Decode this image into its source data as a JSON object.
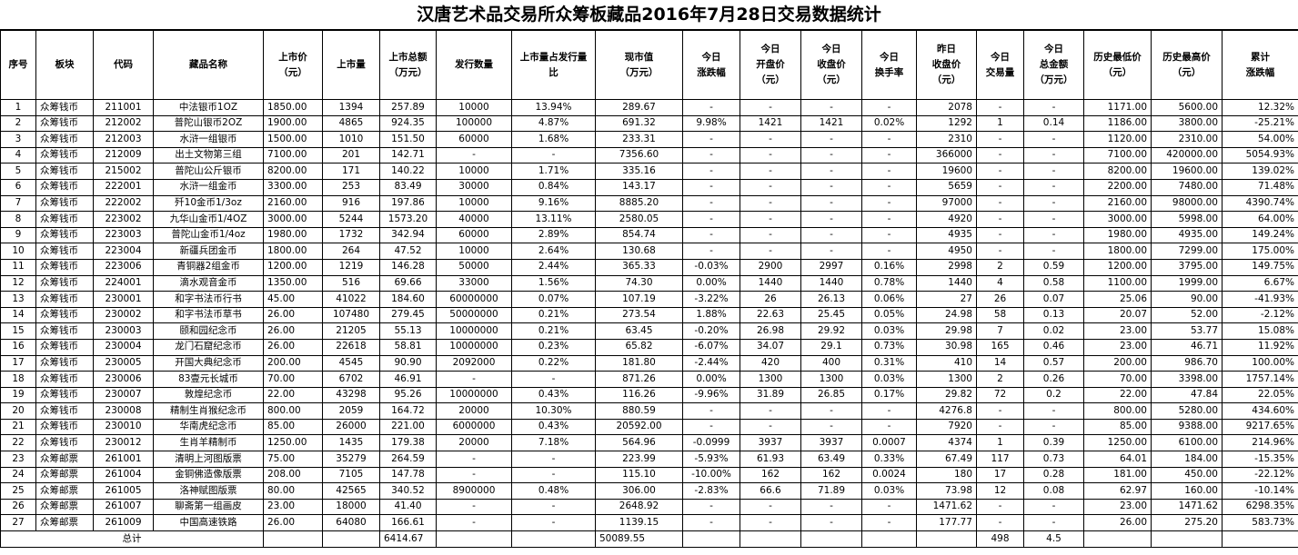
{
  "title": "汉唐艺术品交易所众筹板藏品2016年7月28日交易数据统计",
  "headers": [
    "序号",
    "板块",
    "代码",
    "藏品名称",
    "上市价\n（元）",
    "上市量",
    "上市总额\n（万元）",
    "发行数量",
    "上市量占发行量\n比",
    "现市值\n（万元）",
    "今日\n涨跌幅",
    "今日\n开盘价\n（元）",
    "今日\n收盘价\n（元）",
    "今日\n换手率",
    "昨日\n收盘价\n（元）",
    "今日\n交易量",
    "今日\n总金额\n（万元）",
    "历史最低价\n（元）",
    "历史最高价\n（元）",
    "累计\n涨跌幅"
  ],
  "rows": [
    [
      "1",
      "众筹钱币",
      "211001",
      "中法银币1OZ",
      "1850.00",
      "1394",
      "257.89",
      "10000",
      "13.94%",
      "289.67",
      "-",
      "-",
      "-",
      "-",
      "2078",
      "-",
      "-",
      "1171.00",
      "5600.00",
      "12.32%"
    ],
    [
      "2",
      "众筹钱币",
      "212002",
      "普陀山银币2OZ",
      "1900.00",
      "4865",
      "924.35",
      "100000",
      "4.87%",
      "691.32",
      "9.98%",
      "1421",
      "1421",
      "0.02%",
      "1292",
      "1",
      "0.14",
      "1186.00",
      "3800.00",
      "-25.21%"
    ],
    [
      "3",
      "众筹钱币",
      "212003",
      "水浒一组银币",
      "1500.00",
      "1010",
      "151.50",
      "60000",
      "1.68%",
      "233.31",
      "-",
      "-",
      "-",
      "-",
      "2310",
      "-",
      "-",
      "1120.00",
      "2310.00",
      "54.00%"
    ],
    [
      "4",
      "众筹钱币",
      "212009",
      "出土文物第三组",
      "7100.00",
      "201",
      "142.71",
      "-",
      "-",
      "7356.60",
      "-",
      "-",
      "-",
      "-",
      "366000",
      "-",
      "-",
      "7100.00",
      "420000.00",
      "5054.93%"
    ],
    [
      "5",
      "众筹钱币",
      "215002",
      "普陀山公斤银币",
      "8200.00",
      "171",
      "140.22",
      "10000",
      "1.71%",
      "335.16",
      "-",
      "-",
      "-",
      "-",
      "19600",
      "-",
      "-",
      "8200.00",
      "19600.00",
      "139.02%"
    ],
    [
      "6",
      "众筹钱币",
      "222001",
      "水浒一组金币",
      "3300.00",
      "253",
      "83.49",
      "30000",
      "0.84%",
      "143.17",
      "-",
      "-",
      "-",
      "-",
      "5659",
      "-",
      "-",
      "2200.00",
      "7480.00",
      "71.48%"
    ],
    [
      "7",
      "众筹钱币",
      "222002",
      "歼10金币1/3oz",
      "2160.00",
      "916",
      "197.86",
      "10000",
      "9.16%",
      "8885.20",
      "-",
      "-",
      "-",
      "-",
      "97000",
      "-",
      "-",
      "2160.00",
      "98000.00",
      "4390.74%"
    ],
    [
      "8",
      "众筹钱币",
      "223002",
      "九华山金币1/4OZ",
      "3000.00",
      "5244",
      "1573.20",
      "40000",
      "13.11%",
      "2580.05",
      "-",
      "-",
      "-",
      "-",
      "4920",
      "-",
      "-",
      "3000.00",
      "5998.00",
      "64.00%"
    ],
    [
      "9",
      "众筹钱币",
      "223003",
      "普陀山金币1/4oz",
      "1980.00",
      "1732",
      "342.94",
      "60000",
      "2.89%",
      "854.74",
      "-",
      "-",
      "-",
      "-",
      "4935",
      "-",
      "-",
      "1980.00",
      "4935.00",
      "149.24%"
    ],
    [
      "10",
      "众筹钱币",
      "223004",
      "新疆兵团金币",
      "1800.00",
      "264",
      "47.52",
      "10000",
      "2.64%",
      "130.68",
      "-",
      "-",
      "-",
      "-",
      "4950",
      "-",
      "-",
      "1800.00",
      "7299.00",
      "175.00%"
    ],
    [
      "11",
      "众筹钱币",
      "223006",
      "青铜器2组金币",
      "1200.00",
      "1219",
      "146.28",
      "50000",
      "2.44%",
      "365.33",
      "-0.03%",
      "2900",
      "2997",
      "0.16%",
      "2998",
      "2",
      "0.59",
      "1200.00",
      "3795.00",
      "149.75%"
    ],
    [
      "12",
      "众筹钱币",
      "224001",
      "滴水观音金币",
      "1350.00",
      "516",
      "69.66",
      "33000",
      "1.56%",
      "74.30",
      "0.00%",
      "1440",
      "1440",
      "0.78%",
      "1440",
      "4",
      "0.58",
      "1100.00",
      "1999.00",
      "6.67%"
    ],
    [
      "13",
      "众筹钱币",
      "230001",
      "和字书法币行书",
      "45.00",
      "41022",
      "184.60",
      "60000000",
      "0.07%",
      "107.19",
      "-3.22%",
      "26",
      "26.13",
      "0.06%",
      "27",
      "26",
      "0.07",
      "25.06",
      "90.00",
      "-41.93%"
    ],
    [
      "14",
      "众筹钱币",
      "230002",
      "和字书法币草书",
      "26.00",
      "107480",
      "279.45",
      "50000000",
      "0.21%",
      "273.54",
      "1.88%",
      "22.63",
      "25.45",
      "0.05%",
      "24.98",
      "58",
      "0.13",
      "20.07",
      "52.00",
      "-2.12%"
    ],
    [
      "15",
      "众筹钱币",
      "230003",
      "颐和园纪念币",
      "26.00",
      "21205",
      "55.13",
      "10000000",
      "0.21%",
      "63.45",
      "-0.20%",
      "26.98",
      "29.92",
      "0.03%",
      "29.98",
      "7",
      "0.02",
      "23.00",
      "53.77",
      "15.08%"
    ],
    [
      "16",
      "众筹钱币",
      "230004",
      "龙门石窟纪念币",
      "26.00",
      "22618",
      "58.81",
      "10000000",
      "0.23%",
      "65.82",
      "-6.07%",
      "34.07",
      "29.1",
      "0.73%",
      "30.98",
      "165",
      "0.46",
      "23.00",
      "46.71",
      "11.92%"
    ],
    [
      "17",
      "众筹钱币",
      "230005",
      "开国大典纪念币",
      "200.00",
      "4545",
      "90.90",
      "2092000",
      "0.22%",
      "181.80",
      "-2.44%",
      "420",
      "400",
      "0.31%",
      "410",
      "14",
      "0.57",
      "200.00",
      "986.70",
      "100.00%"
    ],
    [
      "18",
      "众筹钱币",
      "230006",
      "83壹元长城币",
      "70.00",
      "6702",
      "46.91",
      "-",
      "-",
      "871.26",
      "0.00%",
      "1300",
      "1300",
      "0.03%",
      "1300",
      "2",
      "0.26",
      "70.00",
      "3398.00",
      "1757.14%"
    ],
    [
      "19",
      "众筹钱币",
      "230007",
      "敦煌纪念币",
      "22.00",
      "43298",
      "95.26",
      "10000000",
      "0.43%",
      "116.26",
      "-9.96%",
      "31.89",
      "26.85",
      "0.17%",
      "29.82",
      "72",
      "0.2",
      "22.00",
      "47.84",
      "22.05%"
    ],
    [
      "20",
      "众筹钱币",
      "230008",
      "精制生肖猴纪念币",
      "800.00",
      "2059",
      "164.72",
      "20000",
      "10.30%",
      "880.59",
      "-",
      "-",
      "-",
      "-",
      "4276.8",
      "-",
      "-",
      "800.00",
      "5280.00",
      "434.60%"
    ],
    [
      "21",
      "众筹钱币",
      "230010",
      "华南虎纪念币",
      "85.00",
      "26000",
      "221.00",
      "6000000",
      "0.43%",
      "20592.00",
      "-",
      "-",
      "-",
      "-",
      "7920",
      "-",
      "-",
      "85.00",
      "9388.00",
      "9217.65%"
    ],
    [
      "22",
      "众筹钱币",
      "230012",
      "生肖羊精制币",
      "1250.00",
      "1435",
      "179.38",
      "20000",
      "7.18%",
      "564.96",
      "-0.0999",
      "3937",
      "3937",
      "0.0007",
      "4374",
      "1",
      "0.39",
      "1250.00",
      "6100.00",
      "214.96%"
    ],
    [
      "23",
      "众筹邮票",
      "261001",
      "清明上河图版票",
      "75.00",
      "35279",
      "264.59",
      "-",
      "-",
      "223.99",
      "-5.93%",
      "61.93",
      "63.49",
      "0.33%",
      "67.49",
      "117",
      "0.73",
      "64.01",
      "184.00",
      "-15.35%"
    ],
    [
      "24",
      "众筹邮票",
      "261004",
      "金铜佛造像版票",
      "208.00",
      "7105",
      "147.78",
      "-",
      "-",
      "115.10",
      "-10.00%",
      "162",
      "162",
      "0.0024",
      "180",
      "17",
      "0.28",
      "181.00",
      "450.00",
      "-22.12%"
    ],
    [
      "25",
      "众筹邮票",
      "261005",
      "洛神赋图版票",
      "80.00",
      "42565",
      "340.52",
      "8900000",
      "0.48%",
      "306.00",
      "-2.83%",
      "66.6",
      "71.89",
      "0.03%",
      "73.98",
      "12",
      "0.08",
      "62.97",
      "160.00",
      "-10.14%"
    ],
    [
      "26",
      "众筹邮票",
      "261007",
      "聊斋第一组画皮",
      "23.00",
      "18000",
      "41.40",
      "-",
      "-",
      "2648.92",
      "-",
      "-",
      "-",
      "-",
      "1471.62",
      "-",
      "-",
      "23.00",
      "1471.62",
      "6298.35%"
    ],
    [
      "27",
      "众筹邮票",
      "261009",
      "中国高速铁路",
      "26.00",
      "64080",
      "166.61",
      "-",
      "-",
      "1139.15",
      "-",
      "-",
      "-",
      "-",
      "177.77",
      "-",
      "-",
      "26.00",
      "275.20",
      "583.73%"
    ]
  ],
  "total": {
    "label": "总计",
    "listing_total": "6414.67",
    "market_value": "50089.55",
    "volume": "498",
    "amount": "4.5"
  }
}
